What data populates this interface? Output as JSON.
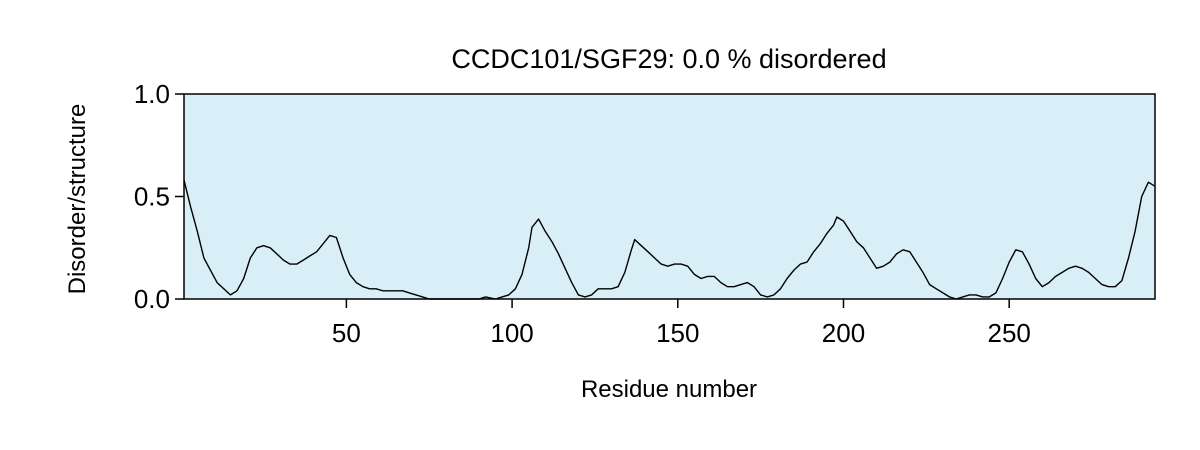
{
  "chart_data": {
    "type": "line",
    "title": "CCDC101/SGF29: 0.0 % disordered",
    "xlabel": "Residue number",
    "ylabel": "Disorder/structure",
    "xlim": [
      1,
      294
    ],
    "ylim": [
      0,
      1.0
    ],
    "xticks": [
      50,
      100,
      150,
      200,
      250
    ],
    "yticks": [
      0.0,
      0.5,
      1.0
    ],
    "ytick_labels": [
      "0.0",
      "0.5",
      "1.0"
    ],
    "background_color": "#d9eff7",
    "line_color": "#000000",
    "grid": false,
    "series": [
      {
        "x": [
          1,
          3,
          5,
          7,
          9,
          11,
          13,
          15,
          17,
          19,
          21,
          23,
          25,
          27,
          29,
          31,
          33,
          35,
          37,
          39,
          41,
          43,
          45,
          47,
          49,
          51,
          53,
          55,
          57,
          59,
          61,
          63,
          65,
          67,
          69,
          71,
          73,
          75,
          80,
          85,
          90,
          92,
          95,
          97,
          99,
          101,
          103,
          105,
          106,
          108,
          110,
          112,
          114,
          116,
          118,
          120,
          122,
          124,
          126,
          128,
          130,
          132,
          134,
          136,
          137,
          139,
          141,
          143,
          145,
          147,
          149,
          151,
          153,
          155,
          157,
          159,
          161,
          163,
          165,
          167,
          169,
          171,
          173,
          175,
          177,
          179,
          181,
          183,
          185,
          187,
          189,
          191,
          193,
          195,
          197,
          198,
          200,
          202,
          204,
          206,
          208,
          210,
          212,
          214,
          216,
          218,
          220,
          222,
          224,
          226,
          228,
          230,
          232,
          234,
          236,
          238,
          240,
          242,
          244,
          246,
          248,
          250,
          252,
          254,
          256,
          258,
          260,
          262,
          264,
          266,
          268,
          270,
          272,
          274,
          276,
          278,
          280,
          282,
          284,
          286,
          288,
          290,
          292,
          294
        ],
        "y": [
          0.58,
          0.45,
          0.33,
          0.2,
          0.14,
          0.08,
          0.05,
          0.02,
          0.04,
          0.1,
          0.2,
          0.25,
          0.26,
          0.25,
          0.22,
          0.19,
          0.17,
          0.17,
          0.19,
          0.21,
          0.23,
          0.27,
          0.31,
          0.3,
          0.2,
          0.12,
          0.08,
          0.06,
          0.05,
          0.05,
          0.04,
          0.04,
          0.04,
          0.04,
          0.03,
          0.02,
          0.01,
          0.0,
          0.0,
          0.0,
          0.0,
          0.01,
          0.0,
          0.01,
          0.02,
          0.05,
          0.12,
          0.25,
          0.35,
          0.39,
          0.33,
          0.28,
          0.22,
          0.15,
          0.08,
          0.02,
          0.01,
          0.02,
          0.05,
          0.05,
          0.05,
          0.06,
          0.13,
          0.24,
          0.29,
          0.26,
          0.23,
          0.2,
          0.17,
          0.16,
          0.17,
          0.17,
          0.16,
          0.12,
          0.1,
          0.11,
          0.11,
          0.08,
          0.06,
          0.06,
          0.07,
          0.08,
          0.06,
          0.02,
          0.01,
          0.02,
          0.05,
          0.1,
          0.14,
          0.17,
          0.18,
          0.23,
          0.27,
          0.32,
          0.36,
          0.4,
          0.38,
          0.33,
          0.28,
          0.25,
          0.2,
          0.15,
          0.16,
          0.18,
          0.22,
          0.24,
          0.23,
          0.18,
          0.13,
          0.07,
          0.05,
          0.03,
          0.01,
          0.0,
          0.01,
          0.02,
          0.02,
          0.01,
          0.01,
          0.03,
          0.1,
          0.18,
          0.24,
          0.23,
          0.17,
          0.1,
          0.06,
          0.08,
          0.11,
          0.13,
          0.15,
          0.16,
          0.15,
          0.13,
          0.1,
          0.07,
          0.06,
          0.06,
          0.09,
          0.2,
          0.33,
          0.5,
          0.57,
          0.55
        ]
      }
    ]
  }
}
